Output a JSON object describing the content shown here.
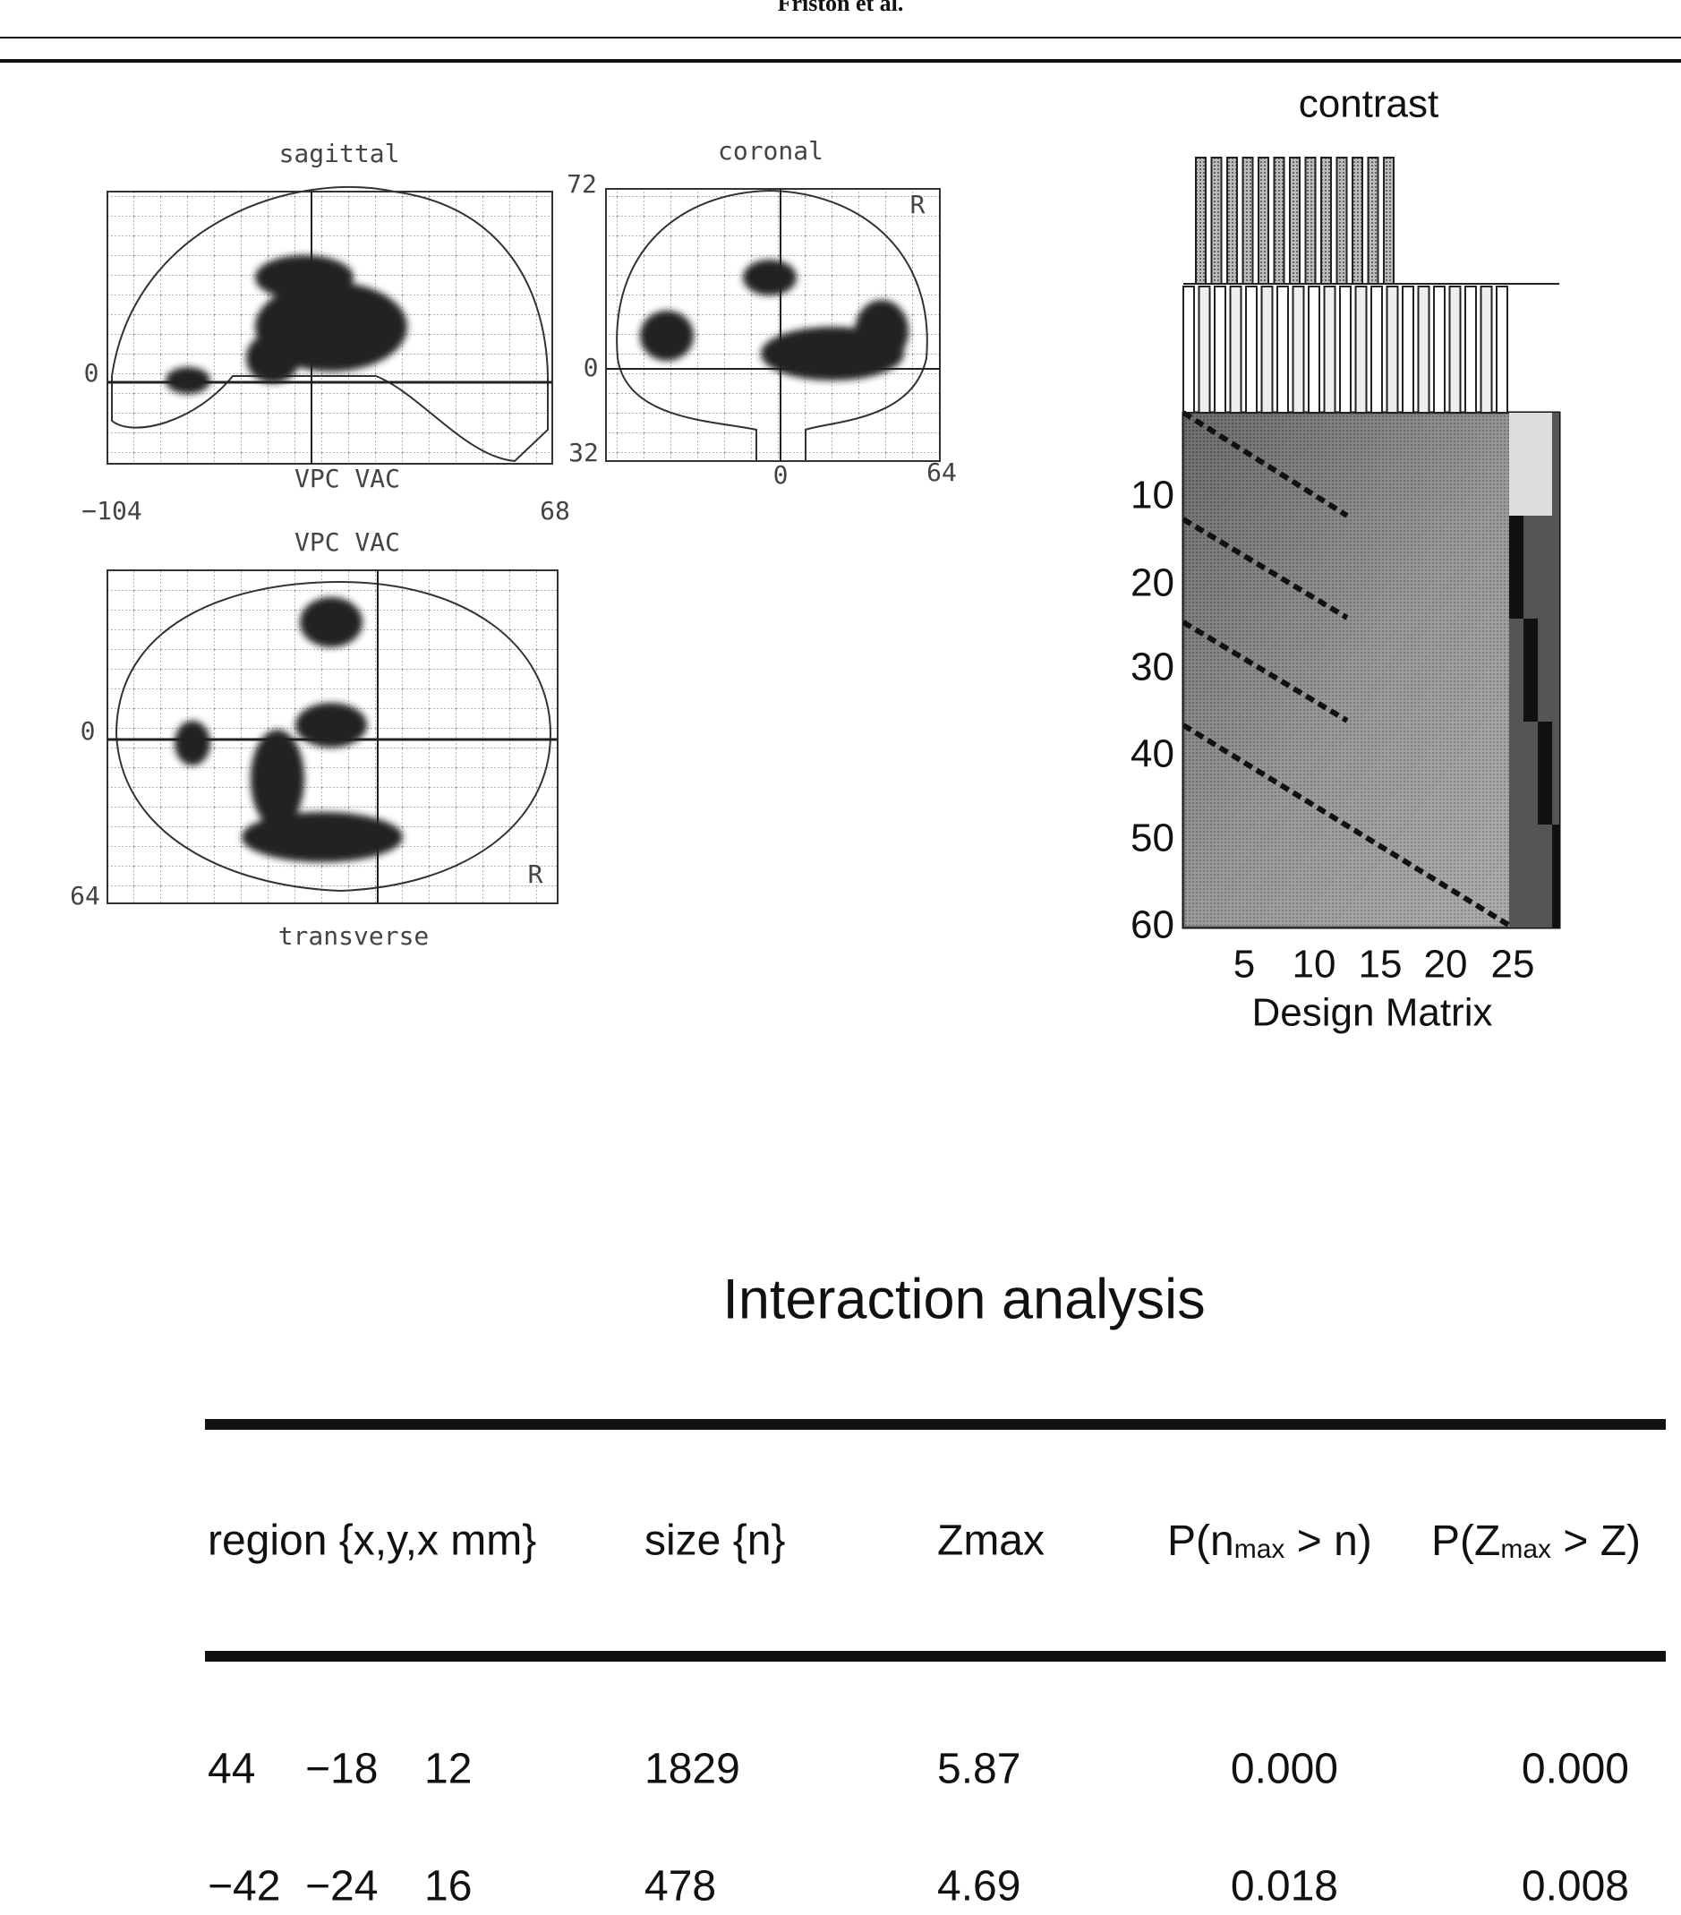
{
  "header": {
    "running_title": "Friston et al."
  },
  "figure": {
    "sagittal": {
      "label": "sagittal",
      "top": "72",
      "zero": "0",
      "bottom_label": "VPC VAC",
      "x_left": "−104",
      "x_right": "68"
    },
    "coronal": {
      "label": "coronal",
      "zero_left": "0",
      "bottom_left": "32",
      "x_zero": "0",
      "x_right": "64",
      "corner": "R"
    },
    "transverse": {
      "label": "transverse",
      "top_label": "VPC VAC",
      "zero": "0",
      "bottom": "64",
      "corner": "R"
    },
    "design": {
      "title": "contrast",
      "yticks": [
        "10",
        "20",
        "30",
        "40",
        "50",
        "60"
      ],
      "xticks": [
        "5",
        "10",
        "15",
        "20",
        "25"
      ],
      "xlabel": "Design Matrix"
    }
  },
  "table": {
    "title": "Interaction analysis",
    "headers": {
      "region": "region {x,y,x mm}",
      "size": "size {n}",
      "zmax": "Zmax",
      "pn": {
        "pre": "P(n",
        "sub": "max",
        "post": " > n)"
      },
      "pz": {
        "pre": "P(Z",
        "sub": "max",
        "post": " > Z)"
      }
    },
    "rows": [
      {
        "region": [
          "44",
          "−18",
          "12"
        ],
        "size": "1829",
        "zmax": "5.87",
        "pn": "0.000",
        "pz": "0.000"
      },
      {
        "region": [
          "−42",
          "−24",
          "16"
        ],
        "size": "478",
        "zmax": "4.69",
        "pn": "0.018",
        "pz": "0.008"
      }
    ]
  }
}
